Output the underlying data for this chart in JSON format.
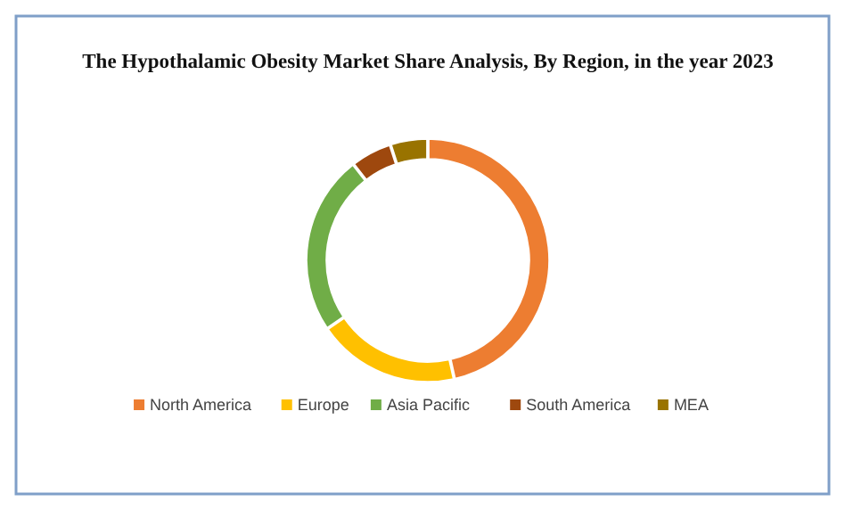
{
  "chart_data": {
    "type": "donut",
    "title": "The Hypothalamic Obesity Market Share Analysis, By Region, in the year 2023",
    "categories": [
      "North America",
      "Europe",
      "Asia Pacific",
      "South America",
      "MEA"
    ],
    "values": [
      46.5,
      19,
      24,
      5.5,
      5
    ],
    "colors": [
      "#ed7d31",
      "#ffc000",
      "#70ad47",
      "#9e480e",
      "#997300"
    ],
    "legend": "bottom"
  }
}
